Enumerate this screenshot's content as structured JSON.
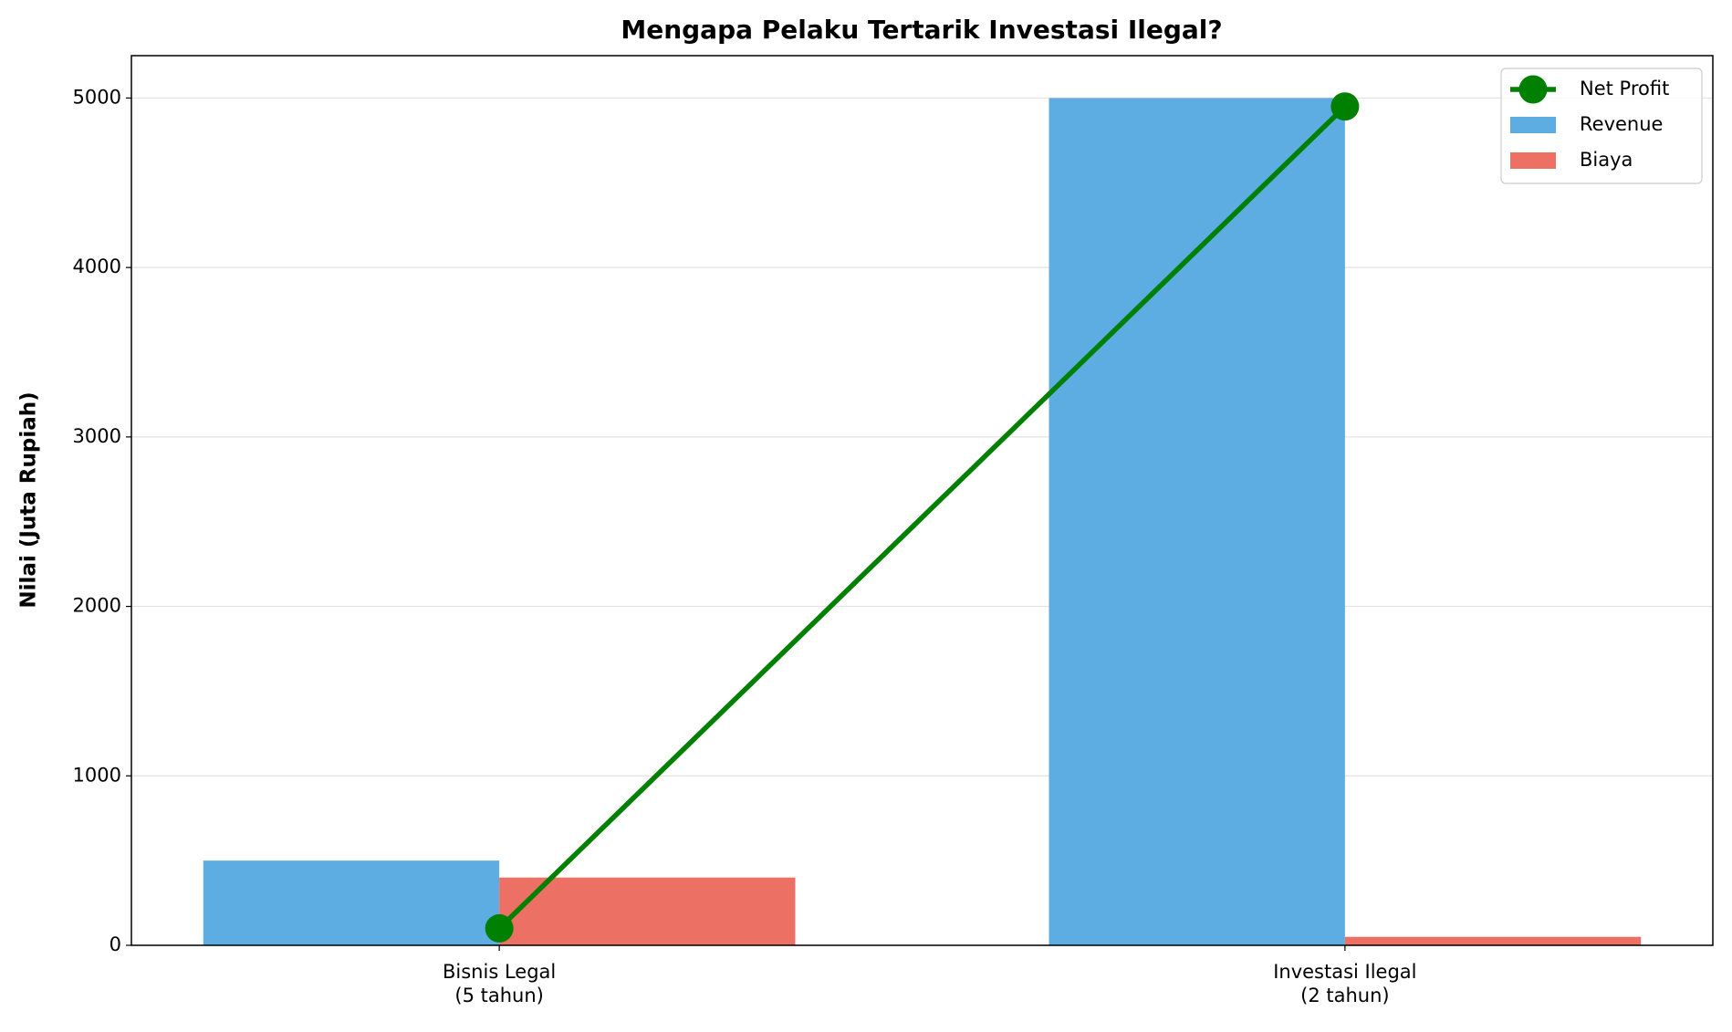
{
  "chart_data": {
    "type": "bar",
    "title": "Mengapa Pelaku Tertarik Investasi Ilegal?",
    "ylabel": "Nilai (Juta Rupiah)",
    "categories": [
      "Bisnis Legal\n(5 tahun)",
      "Investasi Ilegal\n(2 tahun)"
    ],
    "series": [
      {
        "name": "Net Profit",
        "type": "line",
        "color": "#008000",
        "values": [
          100,
          4950
        ]
      },
      {
        "name": "Revenue",
        "type": "bar",
        "color": "#5dade2",
        "values": [
          500,
          5000
        ]
      },
      {
        "name": "Biaya",
        "type": "bar",
        "color": "#ec7063",
        "values": [
          400,
          50
        ]
      }
    ],
    "ylim": [
      0,
      5250
    ],
    "yticks": [
      0,
      1000,
      2000,
      3000,
      4000,
      5000
    ],
    "grid": true,
    "legend": "upper right"
  }
}
